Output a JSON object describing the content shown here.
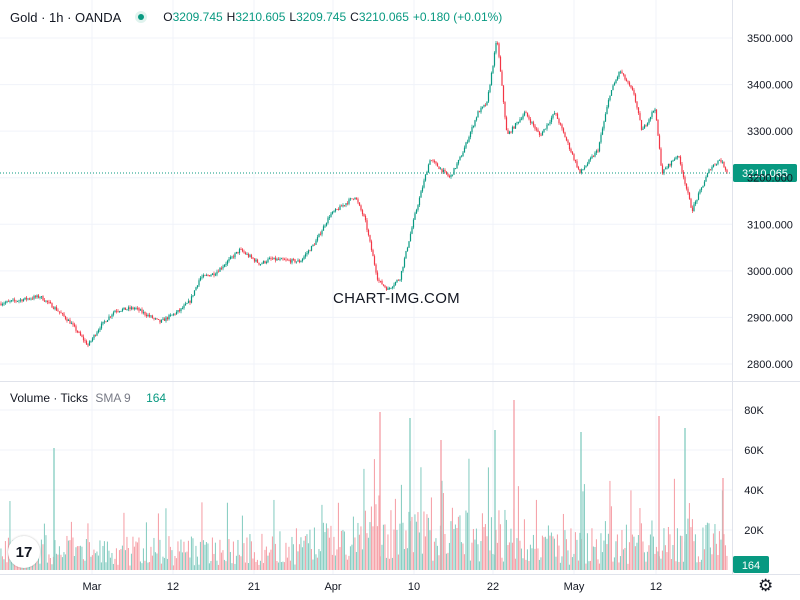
{
  "header": {
    "symbol": "Gold · 1h · OANDA",
    "open_label": "O",
    "open": "3209.745",
    "high_label": "H",
    "high": "3210.605",
    "low_label": "L",
    "low": "3209.745",
    "close_label": "C",
    "close": "3210.065",
    "change": "+0.180 (+0.01%)",
    "status_icon": "market-open-dot-icon"
  },
  "volume_legend": {
    "title": "Volume · Ticks",
    "sma_label": "SMA 9",
    "sma_value": "164"
  },
  "watermark": "CHART-IMG.COM",
  "logo_text": "17",
  "colors": {
    "up": "#089981",
    "down": "#f23645",
    "vol_up": "#8ccfc4",
    "vol_down": "#f6a4ab",
    "grid": "#f0f3fa"
  },
  "chart_data": [
    {
      "type": "candlestick",
      "title": "Gold · 1h · OANDA",
      "y_ticks": [
        "3500.000",
        "3400.000",
        "3300.000",
        "3200.000",
        "3100.000",
        "3000.000",
        "2900.000",
        "2800.000"
      ],
      "ylim": [
        2775,
        3505
      ],
      "x_tick_labels": [
        "Mar",
        "12",
        "21",
        "Apr",
        "10",
        "22",
        "May",
        "12"
      ],
      "last_price_label": "3210.065",
      "last_price": 3210.065,
      "grid": true,
      "price_path": [
        [
          0,
          2930
        ],
        [
          40,
          2945
        ],
        [
          55,
          2920
        ],
        [
          70,
          2890
        ],
        [
          88,
          2840
        ],
        [
          100,
          2880
        ],
        [
          115,
          2915
        ],
        [
          135,
          2920
        ],
        [
          160,
          2890
        ],
        [
          180,
          2915
        ],
        [
          190,
          2935
        ],
        [
          200,
          2985
        ],
        [
          215,
          2995
        ],
        [
          240,
          3045
        ],
        [
          260,
          3015
        ],
        [
          270,
          3025
        ],
        [
          300,
          3020
        ],
        [
          315,
          3060
        ],
        [
          330,
          3120
        ],
        [
          355,
          3160
        ],
        [
          365,
          3110
        ],
        [
          378,
          2980
        ],
        [
          388,
          2960
        ],
        [
          400,
          2985
        ],
        [
          415,
          3120
        ],
        [
          430,
          3240
        ],
        [
          450,
          3200
        ],
        [
          462,
          3250
        ],
        [
          478,
          3340
        ],
        [
          487,
          3360
        ],
        [
          497,
          3500
        ],
        [
          507,
          3290
        ],
        [
          525,
          3340
        ],
        [
          540,
          3290
        ],
        [
          555,
          3340
        ],
        [
          580,
          3210
        ],
        [
          598,
          3260
        ],
        [
          610,
          3380
        ],
        [
          620,
          3430
        ],
        [
          634,
          3380
        ],
        [
          642,
          3300
        ],
        [
          655,
          3350
        ],
        [
          662,
          3210
        ],
        [
          678,
          3250
        ],
        [
          692,
          3130
        ],
        [
          710,
          3220
        ],
        [
          720,
          3240
        ],
        [
          728,
          3210
        ]
      ]
    },
    {
      "type": "bar",
      "title": "Volume · Ticks",
      "y_ticks": [
        "80K",
        "60K",
        "40K",
        "20K"
      ],
      "ylim": [
        0,
        85000
      ],
      "last_value_label": "164",
      "profile": [
        [
          0,
          11000
        ],
        [
          70,
          11000
        ],
        [
          100,
          10000
        ],
        [
          160,
          11000
        ],
        [
          220,
          11000
        ],
        [
          300,
          12000
        ],
        [
          330,
          16000
        ],
        [
          370,
          24000
        ],
        [
          400,
          22000
        ],
        [
          440,
          16000
        ],
        [
          480,
          21000
        ],
        [
          520,
          19000
        ],
        [
          560,
          13000
        ],
        [
          600,
          14000
        ],
        [
          640,
          15000
        ],
        [
          680,
          17000
        ],
        [
          730,
          14000
        ]
      ],
      "spikes": [
        [
          54,
          61000
        ],
        [
          380,
          79000
        ],
        [
          410,
          76000
        ],
        [
          441,
          65000
        ],
        [
          495,
          70000
        ],
        [
          514,
          85000
        ],
        [
          581,
          69000
        ],
        [
          659,
          77000
        ],
        [
          685,
          71000
        ],
        [
          723,
          46000
        ]
      ]
    }
  ]
}
